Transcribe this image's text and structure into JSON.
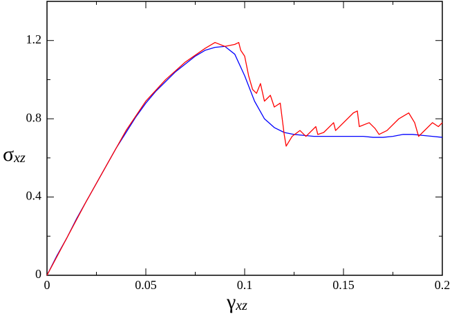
{
  "chart_data": {
    "type": "line",
    "xlabel": {
      "symbol": "γ",
      "subscript": "xz"
    },
    "ylabel": {
      "symbol": "σ",
      "subscript": "xz"
    },
    "xlim": [
      0,
      0.2
    ],
    "ylim": [
      0,
      1.4
    ],
    "xticks": [
      0,
      0.05,
      0.1,
      0.15,
      0.2
    ],
    "yticks": [
      0,
      0.4,
      0.8,
      1.2
    ],
    "xminorticks": [
      0.025,
      0.075,
      0.125,
      0.175
    ],
    "yminorticks": [
      0.2,
      0.6,
      1.0
    ],
    "series": [
      {
        "color": "#ff0000",
        "x": [
          0,
          0.02,
          0.04,
          0.05,
          0.06,
          0.07,
          0.08,
          0.085,
          0.09,
          0.095,
          0.097,
          0.098,
          0.1,
          0.102,
          0.104,
          0.106,
          0.108,
          0.11,
          0.113,
          0.115,
          0.118,
          0.12,
          0.121,
          0.124,
          0.128,
          0.131,
          0.136,
          0.137,
          0.14,
          0.145,
          0.146,
          0.155,
          0.157,
          0.158,
          0.163,
          0.166,
          0.168,
          0.172,
          0.178,
          0.183,
          0.186,
          0.188,
          0.19,
          0.195,
          0.198,
          0.2
        ],
        "values": [
          0,
          0.38,
          0.74,
          0.89,
          1.0,
          1.09,
          1.16,
          1.19,
          1.17,
          1.18,
          1.19,
          1.15,
          1.12,
          1.02,
          0.95,
          0.93,
          0.98,
          0.89,
          0.92,
          0.86,
          0.88,
          0.72,
          0.66,
          0.71,
          0.74,
          0.71,
          0.76,
          0.72,
          0.73,
          0.78,
          0.74,
          0.83,
          0.84,
          0.76,
          0.78,
          0.75,
          0.72,
          0.74,
          0.8,
          0.83,
          0.78,
          0.71,
          0.73,
          0.78,
          0.76,
          0.78
        ]
      },
      {
        "color": "#0000ff",
        "x": [
          0,
          0.005,
          0.01,
          0.015,
          0.02,
          0.025,
          0.03,
          0.035,
          0.04,
          0.045,
          0.05,
          0.055,
          0.06,
          0.065,
          0.07,
          0.075,
          0.08,
          0.085,
          0.09,
          0.095,
          0.1,
          0.105,
          0.11,
          0.115,
          0.12,
          0.125,
          0.13,
          0.135,
          0.14,
          0.145,
          0.15,
          0.155,
          0.16,
          0.165,
          0.17,
          0.175,
          0.18,
          0.185,
          0.19,
          0.195,
          0.2
        ],
        "values": [
          0,
          0.1,
          0.19,
          0.29,
          0.38,
          0.47,
          0.56,
          0.65,
          0.73,
          0.81,
          0.88,
          0.94,
          0.99,
          1.04,
          1.08,
          1.12,
          1.15,
          1.165,
          1.17,
          1.13,
          1.02,
          0.89,
          0.8,
          0.755,
          0.73,
          0.72,
          0.715,
          0.71,
          0.71,
          0.71,
          0.71,
          0.71,
          0.71,
          0.705,
          0.705,
          0.71,
          0.72,
          0.72,
          0.715,
          0.71,
          0.705
        ]
      }
    ]
  }
}
